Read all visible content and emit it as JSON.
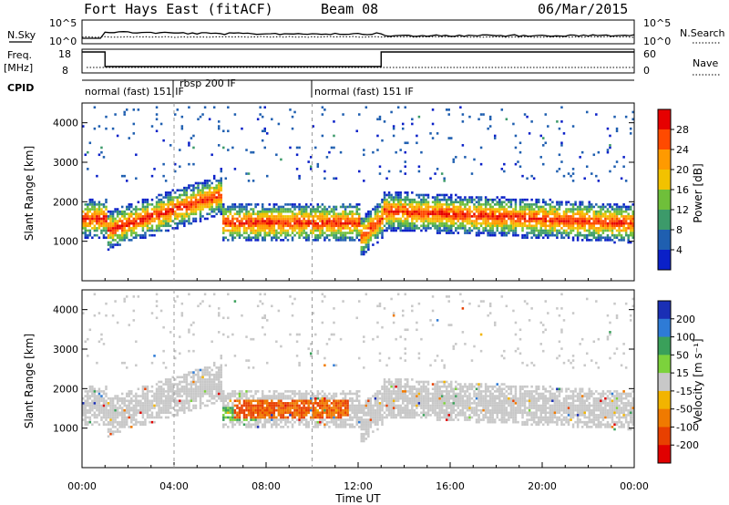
{
  "header": {
    "station": "Fort Hays East (fitACF)",
    "beam": "Beam 08",
    "date": "06/Mar/2015"
  },
  "panels": {
    "noise": {
      "left_label": "N.Sky",
      "left_ticks": [
        "10^5",
        "10^0"
      ],
      "right_ticks": [
        "10^5",
        "10^0"
      ],
      "right_label": "N.Search"
    },
    "freq": {
      "left_label_top": "Freq.",
      "left_label_bottom": "[MHz]",
      "left_ticks": [
        "18",
        "8"
      ],
      "right_ticks": [
        "60",
        "0"
      ],
      "right_label": "Nave"
    },
    "cpid": {
      "label": "CPID",
      "modes": [
        {
          "start_hour": 0.0,
          "text": "normal (fast) 151 IF"
        },
        {
          "start_hour": 4.0,
          "text": "rbsp 200 IF"
        },
        {
          "start_hour": 10.0,
          "text": "normal (fast) 151 IF"
        }
      ]
    }
  },
  "chart_data": [
    {
      "type": "heatmap",
      "name": "power",
      "ylabel": "Slant Range [km]",
      "ylim": [
        0,
        4500
      ],
      "yticks": [
        1000,
        2000,
        3000,
        4000
      ],
      "xlim": [
        0,
        24
      ],
      "colorbar": {
        "label": "Power [dB]",
        "ticks": [
          "28",
          "24",
          "20",
          "16",
          "12",
          "8",
          "4"
        ],
        "colors": [
          "#e60000",
          "#ff4a00",
          "#ff9a00",
          "#f2c200",
          "#6fbf3a",
          "#3c9a6a",
          "#1f5fb0",
          "#0a20c8"
        ]
      }
    },
    {
      "type": "heatmap",
      "name": "velocity",
      "ylabel": "Slant Range [km]",
      "ylim": [
        0,
        4500
      ],
      "yticks": [
        1000,
        2000,
        3000,
        4000
      ],
      "xlabel": "Time UT",
      "xticks": [
        "00:00",
        "04:00",
        "08:00",
        "12:00",
        "16:00",
        "20:00",
        "00:00"
      ],
      "xlim": [
        0,
        24
      ],
      "colorbar": {
        "label": "Velocity [m s⁻¹]",
        "ticks": [
          "200",
          "100",
          "50",
          "15",
          "-15",
          "-50",
          "-100",
          "-200"
        ],
        "colors": [
          "#1a2fb5",
          "#2e7bd6",
          "#3aa05a",
          "#7cd23c",
          "#c8c8c8",
          "#f2b400",
          "#f07a00",
          "#e84000",
          "#e00000"
        ]
      }
    }
  ]
}
